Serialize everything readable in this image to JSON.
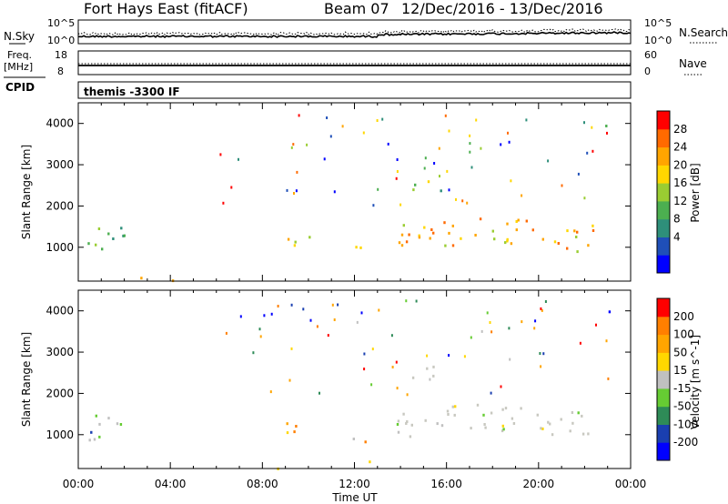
{
  "header": {
    "title": "Fort Hays East (fitACF)",
    "beam": "Beam 07",
    "date_range": "12/Dec/2016 - 13/Dec/2016"
  },
  "mode_label": "themis -3300 IF",
  "cpid_label": "CPID",
  "colors": {
    "scale_power": [
      "#0000ff",
      "#1f4fb8",
      "#2e8f7a",
      "#4caf50",
      "#9acd32",
      "#ffd700",
      "#ffa500",
      "#ff6a00",
      "#ff0000"
    ],
    "scale_velocity": [
      "#0000ff",
      "#1a3fb0",
      "#2e8b57",
      "#66cc33",
      "#c0c0c0",
      "#ffd700",
      "#ffa500",
      "#ff7f00",
      "#ff0000"
    ],
    "ground_scatter": "#c8c8c0"
  },
  "chart_data": [
    {
      "type": "line",
      "name": "nsky-nsearch",
      "left_label": "N.Sky",
      "left_ticks": [
        "10^5",
        "10^0"
      ],
      "right_label": "N.Search",
      "right_ticks": [
        "10^5",
        "10^0"
      ],
      "series": [
        {
          "name": "N.Sky",
          "style": "solid"
        },
        {
          "name": "N.Search",
          "style": "dotted"
        }
      ]
    },
    {
      "type": "line",
      "name": "freq-nave",
      "left_label_lines": [
        "Freq.",
        "[MHz]"
      ],
      "left_ticks": [
        "18",
        "8"
      ],
      "right_label": "Nave",
      "right_ticks": [
        "60",
        "0"
      ],
      "series": [
        {
          "name": "Freq.",
          "style": "solid"
        },
        {
          "name": "Nave",
          "style": "dotted"
        }
      ]
    },
    {
      "type": "heatmap",
      "name": "power",
      "ylabel": "Slant Range [km]",
      "yticks": [
        "1000",
        "2000",
        "3000",
        "4000"
      ],
      "ylim": [
        180,
        4500
      ],
      "xlim": [
        0,
        24
      ],
      "xticks": [
        "00:00",
        "04:00",
        "08:00",
        "12:00",
        "16:00",
        "20:00",
        "00:00"
      ],
      "colorbar_label": "Power [dB]",
      "colorbar_ticks": [
        "4",
        "8",
        "12",
        "16",
        "20",
        "24",
        "28"
      ],
      "regions": [
        {
          "t0": 0.0,
          "t1": 2.0,
          "r0": 900,
          "r1": 1550,
          "level": 0.35
        },
        {
          "t0": 8.6,
          "t1": 10.4,
          "r0": 1050,
          "r1": 1350,
          "level": 0.65
        },
        {
          "t0": 11.4,
          "t1": 12.6,
          "r0": 850,
          "r1": 1050,
          "level": 0.75
        },
        {
          "t0": 13.8,
          "t1": 22.6,
          "r0": 1000,
          "r1": 1700,
          "level": 0.7
        },
        {
          "t0": 14.4,
          "t1": 16.2,
          "r0": 2400,
          "r1": 2700,
          "level": 0.45
        },
        {
          "t0": 22.6,
          "t1": 23.2,
          "r0": 3800,
          "r1": 4050,
          "level": 0.45
        },
        {
          "t0": 0.0,
          "t1": 13.5,
          "r0": 200,
          "r1": 400,
          "level": 0.55
        }
      ]
    },
    {
      "type": "heatmap",
      "name": "velocity",
      "ylabel": "Slant Range [km]",
      "yticks": [
        "1000",
        "2000",
        "3000",
        "4000"
      ],
      "ylim": [
        180,
        4500
      ],
      "xlim": [
        0,
        24
      ],
      "xticks": [
        "00:00",
        "04:00",
        "08:00",
        "12:00",
        "16:00",
        "20:00",
        "00:00"
      ],
      "xlabel": "Time UT",
      "colorbar_label": "Velocity [m s^-1]",
      "colorbar_ticks": [
        "200",
        "100",
        "50",
        "15",
        "-15",
        "-50",
        "-100",
        "-200"
      ],
      "regions": [
        {
          "t0": 0.0,
          "t1": 2.0,
          "r0": 900,
          "r1": 1550,
          "level": 0.35
        },
        {
          "t0": 8.6,
          "t1": 10.4,
          "r0": 1050,
          "r1": 1350,
          "level": 0.72
        },
        {
          "t0": 11.4,
          "t1": 12.6,
          "r0": 850,
          "r1": 1050,
          "level": 0.7
        },
        {
          "t0": 13.8,
          "t1": 22.6,
          "r0": 1000,
          "r1": 1700,
          "level": 0.5
        },
        {
          "t0": 14.4,
          "t1": 16.2,
          "r0": 2400,
          "r1": 2700,
          "level": 0.5
        },
        {
          "t0": 22.6,
          "t1": 23.2,
          "r0": 3800,
          "r1": 4050,
          "level": 0.05
        },
        {
          "t0": 0.0,
          "t1": 13.5,
          "r0": 200,
          "r1": 400,
          "level": 0.62
        }
      ]
    }
  ]
}
